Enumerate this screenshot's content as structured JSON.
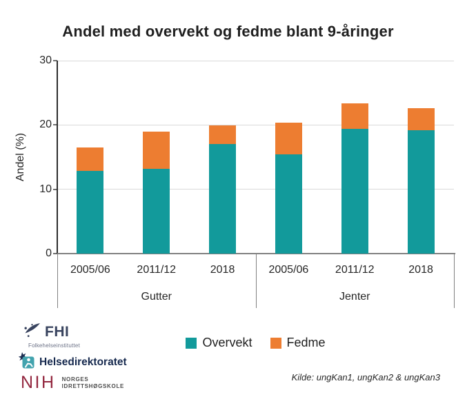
{
  "chart_data": {
    "type": "bar",
    "stacked": true,
    "title": "Andel med overvekt og fedme blant 9-åringer",
    "ylabel": "Andel (%)",
    "ylim": [
      0,
      30
    ],
    "yticks": [
      0,
      10,
      20,
      30
    ],
    "grid": true,
    "legend_position": "bottom",
    "groups": [
      {
        "label": "Gutter",
        "categories": [
          "2005/06",
          "2011/12",
          "2018"
        ]
      },
      {
        "label": "Jenter",
        "categories": [
          "2005/06",
          "2011/12",
          "2018"
        ]
      }
    ],
    "series": [
      {
        "name": "Overvekt",
        "color": "#129a9b",
        "values": [
          12.9,
          13.2,
          17.0,
          15.4,
          19.4,
          19.2
        ]
      },
      {
        "name": "Fedme",
        "color": "#ed7d31",
        "values": [
          3.6,
          5.8,
          2.9,
          5.0,
          4.0,
          3.4
        ]
      }
    ]
  },
  "footer": {
    "source": "Kilde: ungKan1, ungKan2 & ungKan3",
    "logos": {
      "fhi": {
        "name": "FHI",
        "subtitle": "Folkehelseinstituttet"
      },
      "helsedirektoratet": {
        "name": "Helsedirektoratet"
      },
      "nih": {
        "name": "NIH",
        "line1": "NORGES",
        "line2": "IDRETTSHØGSKOLE"
      }
    }
  },
  "colors": {
    "overvekt": "#129a9b",
    "fedme": "#ed7d31",
    "gridline": "#d9d9d9",
    "axis": "#808080",
    "text": "#262626",
    "fhi_navy": "#39445f",
    "helsedir_navy": "#16294e",
    "helsedir_teal": "#42a3ae",
    "nih_maroon": "#93273f"
  }
}
